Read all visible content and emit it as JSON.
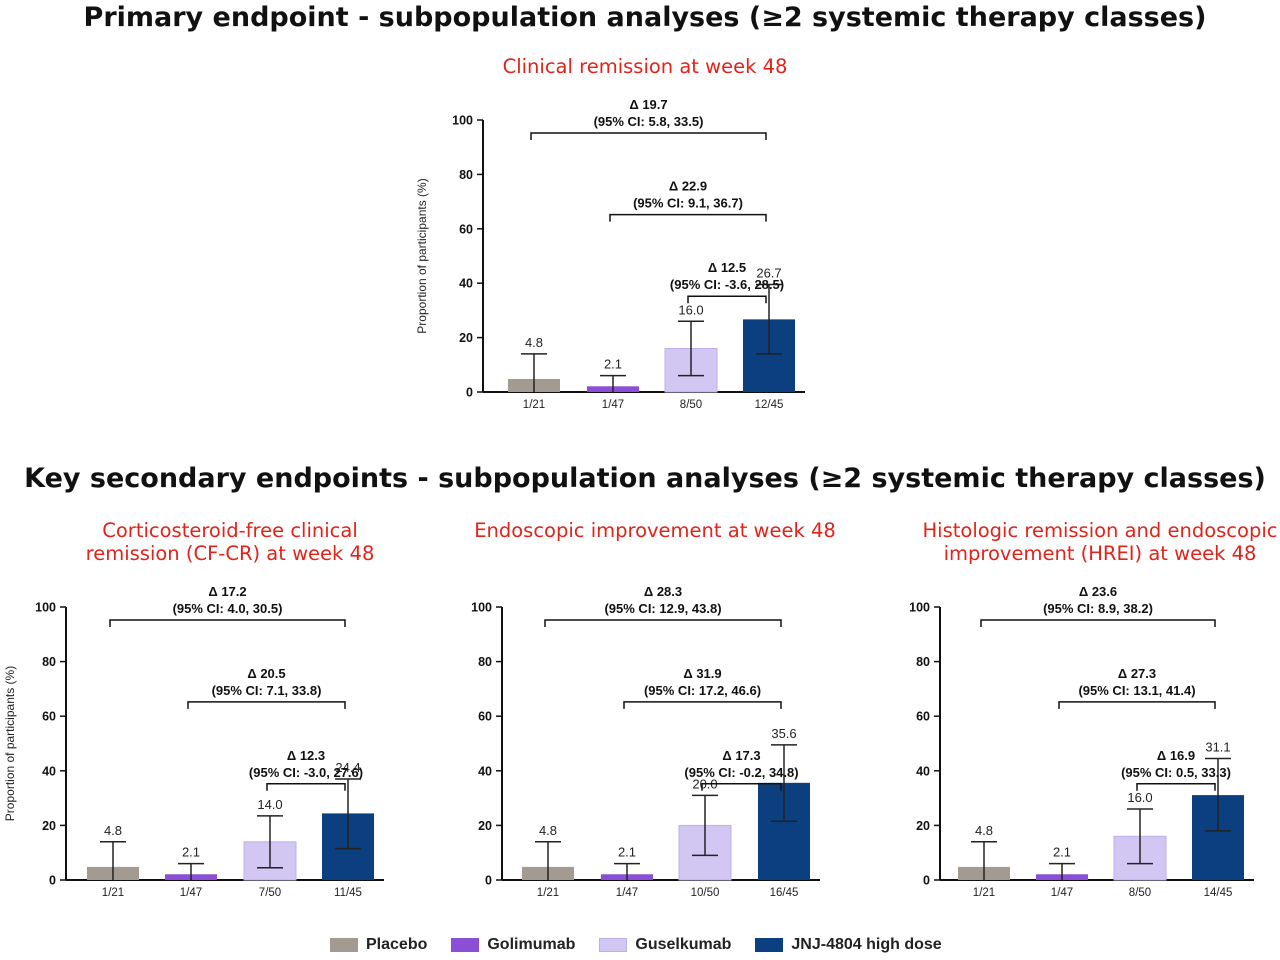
{
  "primary_title": "Primary endpoint - subpopulation analyses (≥2 systemic therapy classes)",
  "secondary_title": "Key secondary endpoints - subpopulation analyses (≥2 systemic therapy classes)",
  "colors": {
    "title_red": "#e2231a",
    "placebo": "#a39a92",
    "golimumab": "#8a4fd6",
    "guselkumab": "#d2c7f3",
    "guselkumab_border": "#bdb0ea",
    "jnj": "#0b3f7f"
  },
  "legend": [
    "Placebo",
    "Golimumab",
    "Guselkumab",
    "JNJ-4804 high dose"
  ],
  "chart_data": [
    {
      "type": "bar",
      "title_lines": [
        "Clinical remission at week 48"
      ],
      "ylabel": "Proportion of participants (%)",
      "ylim": [
        0,
        100
      ],
      "yticks": [
        0,
        20,
        40,
        60,
        80,
        100
      ],
      "categories": [
        "1/21",
        "1/47",
        "8/50",
        "12/45"
      ],
      "series_names": [
        "Placebo",
        "Golimumab",
        "Guselkumab",
        "JNJ-4804 high dose"
      ],
      "values": [
        4.8,
        2.1,
        16.0,
        26.7
      ],
      "value_labels": [
        "4.8",
        "2.1",
        "16.0",
        "26.7"
      ],
      "error_low": [
        0,
        0,
        6,
        14
      ],
      "error_high": [
        14,
        6,
        26,
        39.5
      ],
      "comparisons": [
        {
          "from": 0,
          "to": 3,
          "delta": "Δ 19.7",
          "ci": "(95% CI: 5.8, 33.5)"
        },
        {
          "from": 1,
          "to": 3,
          "delta": "Δ 22.9",
          "ci": "(95% CI: 9.1, 36.7)"
        },
        {
          "from": 2,
          "to": 3,
          "delta": "Δ 12.5",
          "ci": "(95% CI: -3.6, 28.5)"
        }
      ]
    },
    {
      "type": "bar",
      "title_lines": [
        "Corticosteroid-free clinical",
        "remission (CF-CR) at week 48"
      ],
      "ylabel": "Proportion of participants (%)",
      "ylim": [
        0,
        100
      ],
      "yticks": [
        0,
        20,
        40,
        60,
        80,
        100
      ],
      "categories": [
        "1/21",
        "1/47",
        "7/50",
        "11/45"
      ],
      "series_names": [
        "Placebo",
        "Golimumab",
        "Guselkumab",
        "JNJ-4804 high dose"
      ],
      "values": [
        4.8,
        2.1,
        14.0,
        24.4
      ],
      "value_labels": [
        "4.8",
        "2.1",
        "14.0",
        "24.4"
      ],
      "error_low": [
        0,
        0,
        4.5,
        11.5
      ],
      "error_high": [
        14,
        6,
        23.5,
        37
      ],
      "comparisons": [
        {
          "from": 0,
          "to": 3,
          "delta": "Δ 17.2",
          "ci": "(95% CI: 4.0, 30.5)"
        },
        {
          "from": 1,
          "to": 3,
          "delta": "Δ 20.5",
          "ci": "(95% CI: 7.1, 33.8)"
        },
        {
          "from": 2,
          "to": 3,
          "delta": "Δ 12.3",
          "ci": "(95% CI: -3.0, 27.6)"
        }
      ]
    },
    {
      "type": "bar",
      "title_lines": [
        "Endoscopic improvement at week 48"
      ],
      "ylabel": "",
      "ylim": [
        0,
        100
      ],
      "yticks": [
        0,
        20,
        40,
        60,
        80,
        100
      ],
      "categories": [
        "1/21",
        "1/47",
        "10/50",
        "16/45"
      ],
      "series_names": [
        "Placebo",
        "Golimumab",
        "Guselkumab",
        "JNJ-4804 high dose"
      ],
      "values": [
        4.8,
        2.1,
        20.0,
        35.6
      ],
      "value_labels": [
        "4.8",
        "2.1",
        "20.0",
        "35.6"
      ],
      "error_low": [
        0,
        0,
        9,
        21.5
      ],
      "error_high": [
        14,
        6,
        31,
        49.5
      ],
      "comparisons": [
        {
          "from": 0,
          "to": 3,
          "delta": "Δ 28.3",
          "ci": "(95% CI: 12.9, 43.8)"
        },
        {
          "from": 1,
          "to": 3,
          "delta": "Δ 31.9",
          "ci": "(95% CI: 17.2, 46.6)"
        },
        {
          "from": 2,
          "to": 3,
          "delta": "Δ 17.3",
          "ci": "(95% CI: -0.2, 34.8)"
        }
      ]
    },
    {
      "type": "bar",
      "title_lines": [
        "Histologic remission and endoscopic",
        "improvement (HREI) at week 48"
      ],
      "ylabel": "",
      "ylim": [
        0,
        100
      ],
      "yticks": [
        0,
        20,
        40,
        60,
        80,
        100
      ],
      "categories": [
        "1/21",
        "1/47",
        "8/50",
        "14/45"
      ],
      "series_names": [
        "Placebo",
        "Golimumab",
        "Guselkumab",
        "JNJ-4804 high dose"
      ],
      "values": [
        4.8,
        2.1,
        16.0,
        31.1
      ],
      "value_labels": [
        "4.8",
        "2.1",
        "16.0",
        "31.1"
      ],
      "error_low": [
        0,
        0,
        6,
        18
      ],
      "error_high": [
        14,
        6,
        26,
        44.5
      ],
      "comparisons": [
        {
          "from": 0,
          "to": 3,
          "delta": "Δ 23.6",
          "ci": "(95% CI: 8.9, 38.2)"
        },
        {
          "from": 1,
          "to": 3,
          "delta": "Δ 27.3",
          "ci": "(95% CI: 13.1, 41.4)"
        },
        {
          "from": 2,
          "to": 3,
          "delta": "Δ 16.9",
          "ci": "(95% CI: 0.5, 33.3)"
        }
      ]
    }
  ]
}
